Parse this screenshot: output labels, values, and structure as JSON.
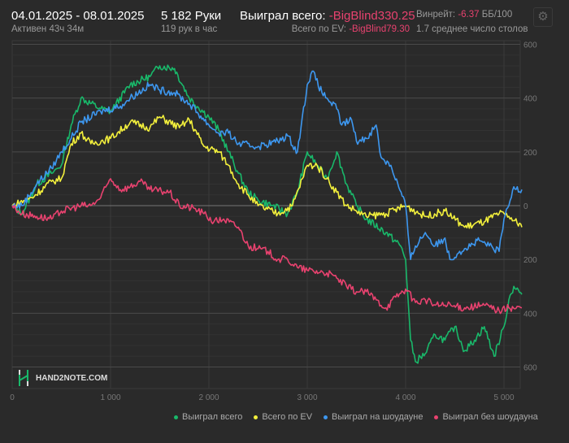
{
  "header": {
    "date_range": "04.01.2025 - 08.01.2025",
    "active": "Активен 43ч 34м",
    "hands": "5 182 Руки",
    "hands_per_hour": "119 рук в час",
    "won_label": "Выиграл всего:",
    "won_value": "-BigBlind330.25",
    "ev_label": "Всего по EV:",
    "ev_value": "-BigBlind79.30",
    "winrate_label": "Винрейт:",
    "winrate_value": "-6.37",
    "winrate_unit": "ББ/100",
    "tables": "1.7 среднее число столов"
  },
  "logo": {
    "text": "HAND2NOTE.COM"
  },
  "colors": {
    "green": "#19b86a",
    "yellow": "#f2ef3c",
    "blue": "#3d97ef",
    "pink": "#e8426f",
    "accent": "#e8426f"
  },
  "chart_data": {
    "type": "line",
    "xlim": [
      0,
      5182
    ],
    "ylim": [
      -600,
      600
    ],
    "x_ticks": [
      0,
      1000,
      2000,
      3000,
      4000,
      5000
    ],
    "x_tick_labels": [
      "0",
      "1 000",
      "2 000",
      "3 000",
      "4 000",
      "5 000"
    ],
    "y_ticks": [
      600,
      400,
      200,
      0,
      -200,
      -400,
      -600
    ],
    "y_tick_labels": [
      "600",
      "400",
      "200",
      "0",
      "200",
      "400",
      "600"
    ],
    "legend_position": "bottom-right",
    "grid": true,
    "series": [
      {
        "name": "Выиграл всего",
        "color": "#19b86a",
        "x": [
          0,
          100,
          250,
          400,
          500,
          600,
          700,
          900,
          1000,
          1200,
          1400,
          1500,
          1650,
          1800,
          2000,
          2100,
          2200,
          2300,
          2400,
          2500,
          2650,
          2800,
          2900,
          3000,
          3100,
          3200,
          3300,
          3400,
          3500,
          3600,
          3800,
          3950,
          4000,
          4050,
          4100,
          4200,
          4300,
          4400,
          4500,
          4600,
          4700,
          4800,
          4900,
          5000,
          5050,
          5100,
          5182
        ],
        "y": [
          0,
          -30,
          80,
          120,
          150,
          300,
          400,
          360,
          350,
          450,
          480,
          520,
          510,
          400,
          330,
          280,
          200,
          120,
          50,
          20,
          0,
          -30,
          50,
          200,
          150,
          100,
          200,
          80,
          0,
          -50,
          -100,
          -150,
          -200,
          -500,
          -580,
          -550,
          -480,
          -500,
          -450,
          -540,
          -500,
          -450,
          -560,
          -450,
          -350,
          -300,
          -330
        ]
      },
      {
        "name": "Всего по EV",
        "color": "#f2ef3c",
        "x": [
          0,
          200,
          400,
          500,
          600,
          700,
          800,
          1000,
          1200,
          1400,
          1500,
          1700,
          1800,
          1950,
          2100,
          2200,
          2300,
          2400,
          2500,
          2700,
          2850,
          2950,
          3000,
          3100,
          3200,
          3300,
          3400,
          3500,
          3600,
          3800,
          4000,
          4200,
          4400,
          4600,
          4800,
          4950,
          5050,
          5182
        ],
        "y": [
          0,
          30,
          90,
          100,
          230,
          270,
          230,
          250,
          310,
          290,
          330,
          290,
          320,
          220,
          200,
          150,
          80,
          40,
          0,
          -30,
          0,
          100,
          150,
          150,
          100,
          50,
          0,
          -20,
          -40,
          -30,
          0,
          -40,
          -20,
          -80,
          -60,
          -30,
          -40,
          -80
        ]
      },
      {
        "name": "Выиграл на шоудауне",
        "color": "#3d97ef",
        "x": [
          0,
          100,
          250,
          400,
          500,
          600,
          700,
          900,
          1100,
          1200,
          1400,
          1500,
          1650,
          1800,
          2000,
          2100,
          2200,
          2300,
          2500,
          2700,
          2800,
          2900,
          3000,
          3050,
          3150,
          3200,
          3300,
          3350,
          3450,
          3500,
          3600,
          3700,
          3750,
          3850,
          4000,
          4050,
          4100,
          4200,
          4300,
          4400,
          4450,
          4550,
          4600,
          4750,
          4850,
          4950,
          5000,
          5050,
          5100,
          5182
        ],
        "y": [
          0,
          0,
          80,
          140,
          200,
          250,
          310,
          350,
          370,
          400,
          450,
          430,
          420,
          380,
          300,
          270,
          270,
          230,
          220,
          240,
          260,
          200,
          450,
          500,
          420,
          400,
          360,
          300,
          320,
          240,
          250,
          300,
          180,
          150,
          0,
          -200,
          -150,
          -100,
          -150,
          -120,
          -200,
          -170,
          -160,
          -130,
          -150,
          -170,
          -50,
          0,
          70,
          60
        ]
      },
      {
        "name": "Выиграл без шоудауна",
        "color": "#e8426f",
        "x": [
          0,
          100,
          250,
          400,
          500,
          700,
          800,
          900,
          1000,
          1100,
          1200,
          1300,
          1400,
          1600,
          1700,
          1850,
          1950,
          2050,
          2150,
          2300,
          2400,
          2500,
          2600,
          2700,
          2800,
          2900,
          3000,
          3200,
          3300,
          3400,
          3500,
          3600,
          3700,
          3800,
          3900,
          4000,
          4100,
          4200,
          4300,
          4400,
          4600,
          4800,
          4950,
          5050,
          5182
        ],
        "y": [
          0,
          -30,
          -40,
          -50,
          -20,
          0,
          0,
          30,
          100,
          60,
          70,
          90,
          60,
          50,
          0,
          -10,
          -30,
          -60,
          -50,
          -80,
          -150,
          -160,
          -170,
          -200,
          -200,
          -230,
          -240,
          -250,
          -270,
          -300,
          -320,
          -320,
          -350,
          -380,
          -340,
          -310,
          -360,
          -350,
          -370,
          -370,
          -380,
          -370,
          -390,
          -380,
          -380
        ]
      }
    ]
  }
}
